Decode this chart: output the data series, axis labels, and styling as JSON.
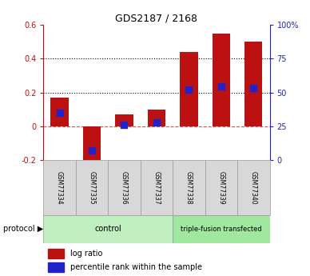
{
  "title": "GDS2187 / 2168",
  "samples": [
    "GSM77334",
    "GSM77335",
    "GSM77336",
    "GSM77337",
    "GSM77338",
    "GSM77339",
    "GSM77340"
  ],
  "log_ratio": [
    0.17,
    -0.27,
    0.07,
    0.1,
    0.44,
    0.55,
    0.5
  ],
  "percentile_rank": [
    0.35,
    0.07,
    0.26,
    0.28,
    0.52,
    0.545,
    0.535
  ],
  "bar_color": "#bb1111",
  "dot_color": "#2222cc",
  "ylim_left": [
    -0.2,
    0.6
  ],
  "ylim_right": [
    0.0,
    1.0
  ],
  "yticks_left": [
    -0.2,
    0.0,
    0.2,
    0.4,
    0.6
  ],
  "ytick_labels_left": [
    "-0.2",
    "0",
    "0.2",
    "0.4",
    "0.6"
  ],
  "yticks_right": [
    0.0,
    0.25,
    0.5,
    0.75,
    1.0
  ],
  "ytick_labels_right": [
    "0",
    "25",
    "50",
    "75",
    "100%"
  ],
  "hlines": [
    0.2,
    0.4
  ],
  "control_label": "control",
  "transfected_label": "triple-fusion transfected",
  "protocol_label": "protocol",
  "legend_bar_label": "log ratio",
  "legend_dot_label": "percentile rank within the sample",
  "control_color": "#c0f0c0",
  "transfected_color": "#a0e8a0",
  "sample_box_color": "#d8d8d8",
  "sample_box_edge": "#999999",
  "bar_width": 0.55,
  "dot_size": 40,
  "n_control": 4,
  "n_transfected": 3
}
